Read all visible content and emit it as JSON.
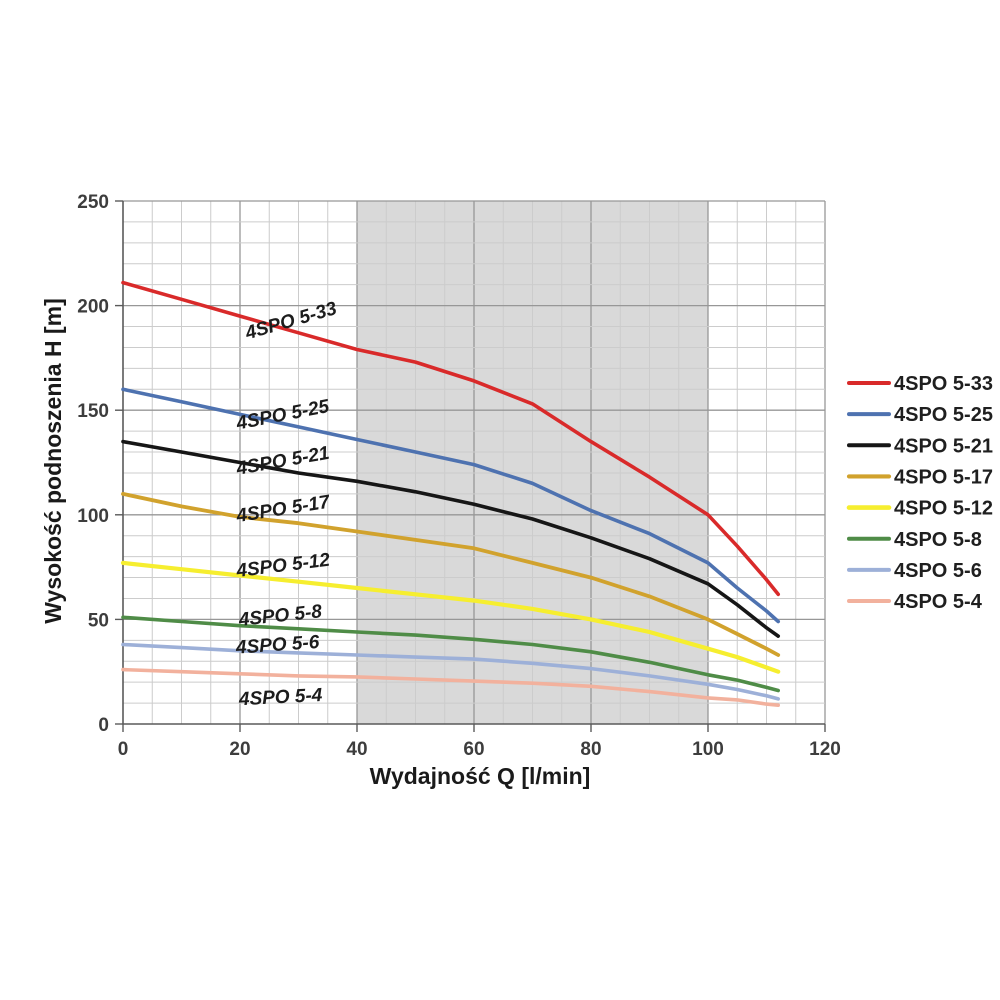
{
  "page": {
    "background": "#ffffff"
  },
  "chart_data": {
    "type": "line",
    "title": "",
    "xlabel": "Wydajność Q [l/min]",
    "ylabel": "Wysokość podnoszenia H [m]",
    "xlim": [
      0,
      120
    ],
    "ylim": [
      0,
      250
    ],
    "x_ticks": [
      0,
      20,
      40,
      60,
      80,
      100,
      120
    ],
    "y_ticks": [
      0,
      50,
      100,
      150,
      200,
      250
    ],
    "x_minor_step": 5,
    "y_minor_step": 10,
    "grid": true,
    "legend_position": "right",
    "shaded_region": {
      "x_from": 40,
      "x_to": 100,
      "color": "#d9d9d9"
    },
    "x": [
      0,
      10,
      20,
      30,
      40,
      50,
      60,
      70,
      80,
      90,
      100,
      105,
      110,
      112
    ],
    "series": [
      {
        "name": "4SPO 5-33",
        "color": "#d92a2a",
        "width": 3.6,
        "values": [
          211,
          203,
          195,
          187,
          179,
          173,
          164,
          153,
          135,
          118,
          100,
          85,
          69,
          62
        ],
        "label": {
          "x": 29,
          "y": 190,
          "angle": -16
        }
      },
      {
        "name": "4SPO 5-25",
        "color": "#4e72b0",
        "width": 3.6,
        "values": [
          160,
          154,
          148,
          142,
          136,
          130,
          124,
          115,
          102,
          91,
          77,
          65,
          54,
          49
        ],
        "label": {
          "x": 27.5,
          "y": 145,
          "angle": -11
        }
      },
      {
        "name": "4SPO 5-21",
        "color": "#161616",
        "width": 3.6,
        "values": [
          135,
          130,
          125,
          120,
          116,
          111,
          105,
          98,
          89,
          79,
          67,
          57,
          46,
          42
        ],
        "label": {
          "x": 27.5,
          "y": 123,
          "angle": -10
        }
      },
      {
        "name": "4SPO 5-17",
        "color": "#d1a22d",
        "width": 3.8,
        "values": [
          110,
          104,
          99,
          96,
          92,
          88,
          84,
          77,
          70,
          61,
          50,
          43,
          36,
          33
        ],
        "label": {
          "x": 27.5,
          "y": 100,
          "angle": -9
        }
      },
      {
        "name": "4SPO 5-12",
        "color": "#f6ee2f",
        "width": 4.2,
        "values": [
          77,
          74,
          71,
          68,
          65,
          62,
          59,
          55,
          50,
          44,
          36,
          32,
          27,
          25
        ],
        "label": {
          "x": 27.5,
          "y": 73,
          "angle": -7
        }
      },
      {
        "name": "4SPO 5-8",
        "color": "#4f8c47",
        "width": 3.6,
        "values": [
          51,
          49,
          47,
          45.5,
          44,
          42.5,
          40.5,
          38,
          34.5,
          29.5,
          23.5,
          21,
          17.5,
          16
        ],
        "label": {
          "x": 27,
          "y": 49,
          "angle": -6
        }
      },
      {
        "name": "4SPO 5-6",
        "color": "#9db0d8",
        "width": 3.6,
        "values": [
          38,
          36.5,
          35,
          34,
          33,
          32,
          31,
          29,
          26.5,
          23,
          19,
          16.5,
          13.5,
          12
        ],
        "label": {
          "x": 26.5,
          "y": 35,
          "angle": -4
        }
      },
      {
        "name": "4SPO 5-4",
        "color": "#f2b19d",
        "width": 3.6,
        "values": [
          26,
          25,
          24,
          23,
          22.5,
          21.5,
          20.5,
          19.5,
          18,
          15.5,
          12.5,
          11.5,
          9.5,
          9
        ],
        "label": {
          "x": 27,
          "y": 10,
          "angle": -3
        }
      }
    ],
    "legend": {
      "items": [
        "4SPO 5-33",
        "4SPO 5-25",
        "4SPO 5-21",
        "4SPO 5-17",
        "4SPO 5-12",
        "4SPO 5-8",
        "4SPO 5-6",
        "4SPO 5-4"
      ]
    }
  }
}
